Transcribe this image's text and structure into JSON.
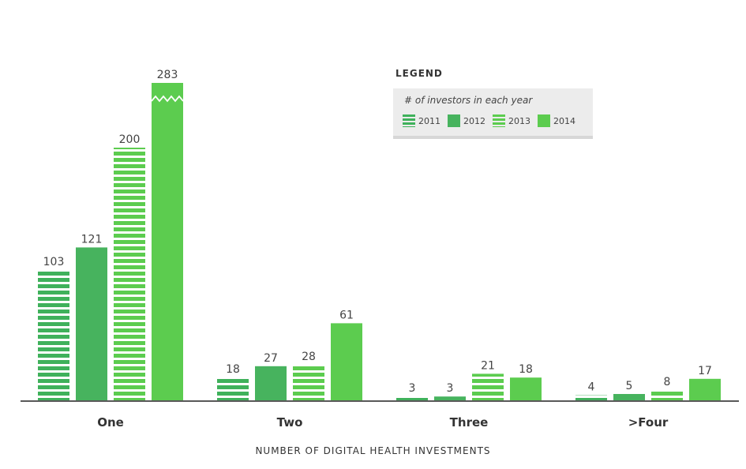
{
  "chart_data": {
    "type": "bar",
    "categories": [
      "One",
      "Two",
      "Three",
      ">Four"
    ],
    "series": [
      {
        "name": "2011",
        "values": [
          103,
          18,
          3,
          4
        ],
        "color": "#3fb15b",
        "pattern": "striped"
      },
      {
        "name": "2012",
        "values": [
          121,
          27,
          3,
          5
        ],
        "color": "#47b35e",
        "pattern": "solid"
      },
      {
        "name": "2013",
        "values": [
          200,
          28,
          21,
          8
        ],
        "color": "#5ccc4f",
        "pattern": "striped"
      },
      {
        "name": "2014",
        "values": [
          283,
          61,
          18,
          17
        ],
        "color": "#5ccc4f",
        "pattern": "solid"
      }
    ],
    "xlabel": "NUMBER OF DIGITAL HEALTH INVESTMENTS",
    "ylabel": "",
    "axis_break_on": "One / 2014",
    "legend": {
      "title": "LEGEND",
      "subtitle": "# of investors in each year",
      "placement": "top-right"
    }
  }
}
